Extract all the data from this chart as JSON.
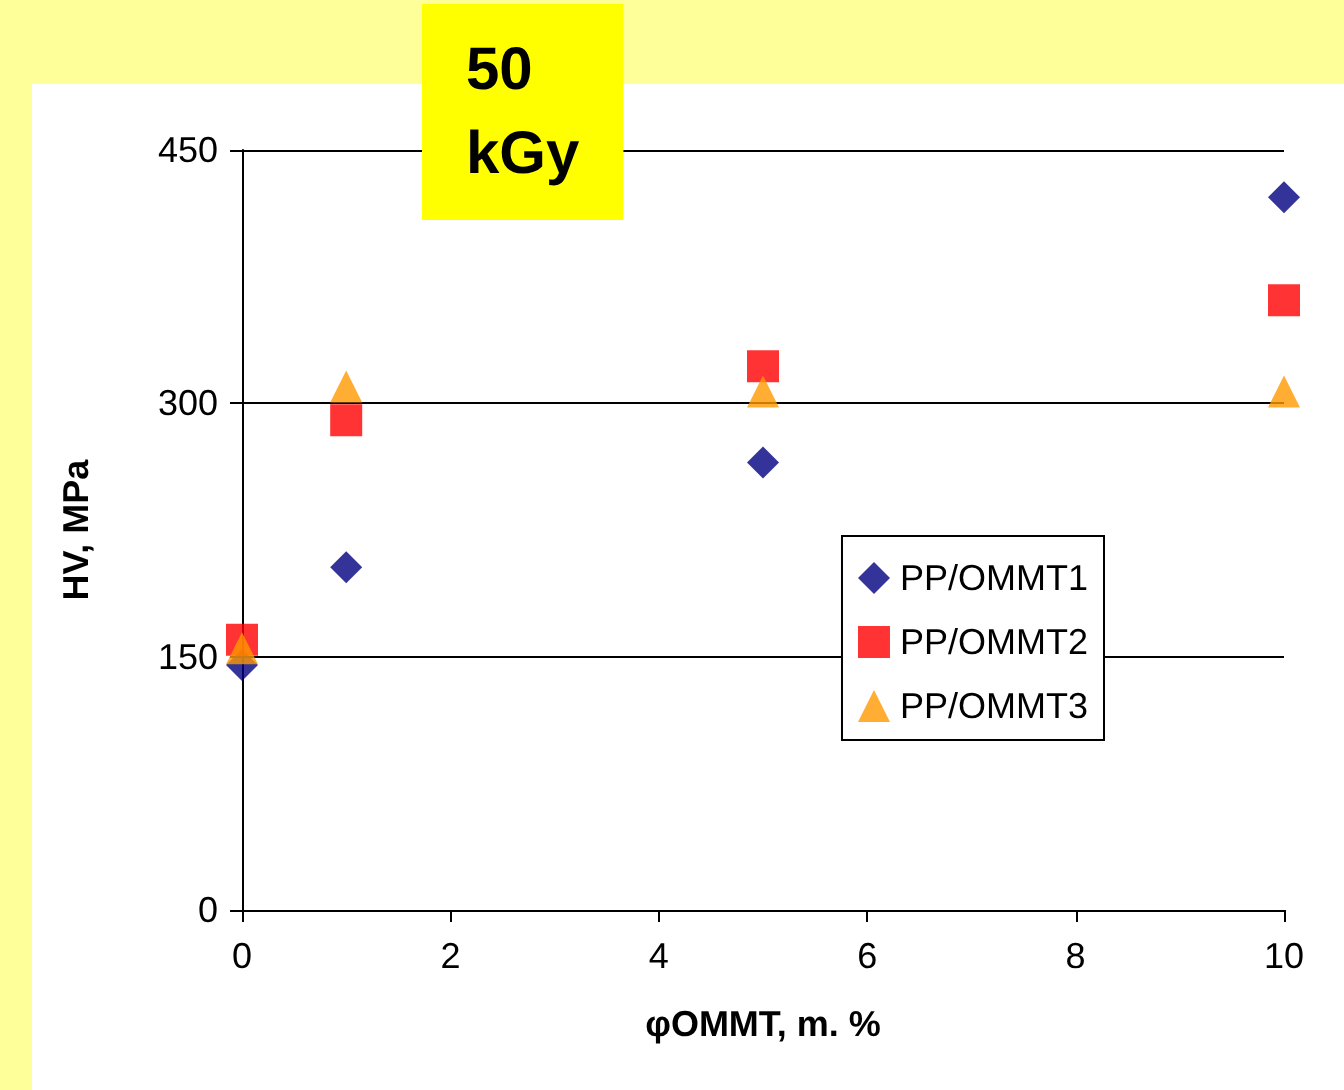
{
  "chart_data": {
    "type": "scatter",
    "title": "50\nkGy",
    "xlabel": "φOMMT, m. %",
    "ylabel": "HV, MPa",
    "xlim": [
      0,
      10
    ],
    "xticks": [
      0,
      2,
      4,
      6,
      8,
      10
    ],
    "ylim": [
      0,
      450
    ],
    "yticks": [
      0,
      150,
      300,
      450
    ],
    "grid": "y",
    "legend": "right",
    "series": [
      {
        "name": "PP/OMMT1",
        "color": "#000080",
        "marker": "diamond",
        "x": [
          0,
          1,
          5,
          10
        ],
        "values": [
          145,
          203,
          265,
          422
        ]
      },
      {
        "name": "PP/OMMT2",
        "color": "#ff0000",
        "marker": "square",
        "x": [
          0,
          1,
          5,
          10
        ],
        "values": [
          160,
          290,
          322,
          361
        ]
      },
      {
        "name": "PP/OMMT3",
        "color": "#ff9900",
        "marker": "triangle",
        "x": [
          0,
          1,
          5,
          10
        ],
        "values": [
          155,
          310,
          307,
          307
        ]
      }
    ]
  }
}
